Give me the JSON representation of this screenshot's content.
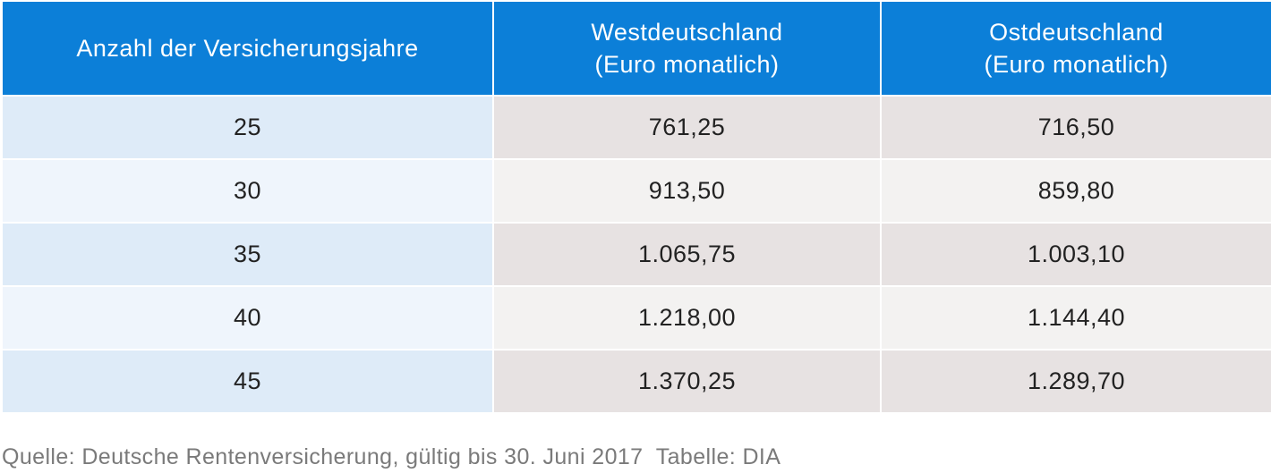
{
  "table": {
    "headers": [
      "Anzahl der Versicherungsjahre",
      "Westdeutschland\n(Euro monatlich)",
      "Ostdeutschland\n(Euro monatlich)"
    ],
    "rows": [
      [
        "25",
        "761,25",
        "716,50"
      ],
      [
        "30",
        "913,50",
        "859,80"
      ],
      [
        "35",
        "1.065,75",
        "1.003,10"
      ],
      [
        "40",
        "1.218,00",
        "1.144,40"
      ],
      [
        "45",
        "1.370,25",
        "1.289,70"
      ]
    ]
  },
  "source": "Quelle: Deutsche Rentenversicherung, gültig bis 30. Juni 2017  Tabelle: DIA",
  "colors": {
    "header_bg": "#0c7fd8",
    "col1_dark": "#deebf8",
    "col1_light": "#eff5fc",
    "data_dark": "#e7e2e2",
    "data_light": "#f3f2f1",
    "source_text": "#7a7a7a"
  }
}
